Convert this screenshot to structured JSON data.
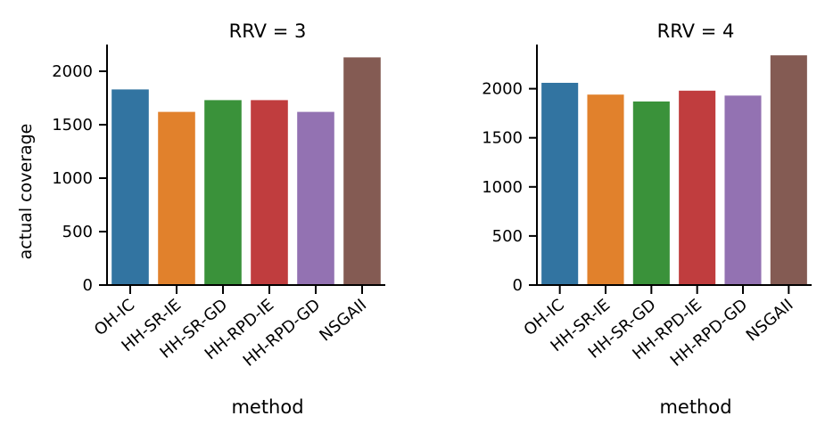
{
  "chart_data": [
    {
      "type": "bar",
      "title": "RRV = 3",
      "xlabel": "method",
      "ylabel": "actual coverage",
      "categories": [
        "OH-IC",
        "HH-SR-IE",
        "HH-SR-GD",
        "HH-RPD-IE",
        "HH-RPD-GD",
        "NSGAII"
      ],
      "values": [
        1830,
        1620,
        1730,
        1730,
        1620,
        2130
      ],
      "colors": [
        "#3274a1",
        "#e1812c",
        "#3a923a",
        "#c03d3e",
        "#9372b2",
        "#845b53"
      ],
      "ylim": [
        0,
        2250
      ],
      "yticks": [
        0,
        500,
        1000,
        1500,
        2000
      ],
      "grid": false,
      "legend": "none"
    },
    {
      "type": "bar",
      "title": "RRV = 4",
      "xlabel": "method",
      "ylabel": "",
      "categories": [
        "OH-IC",
        "HH-SR-IE",
        "HH-SR-GD",
        "HH-RPD-IE",
        "HH-RPD-GD",
        "NSGAII"
      ],
      "values": [
        2060,
        1940,
        1870,
        1980,
        1930,
        2340
      ],
      "colors": [
        "#3274a1",
        "#e1812c",
        "#3a923a",
        "#c03d3e",
        "#9372b2",
        "#845b53"
      ],
      "ylim": [
        0,
        2450
      ],
      "yticks": [
        0,
        500,
        1000,
        1500,
        2000
      ],
      "grid": false,
      "legend": "none"
    }
  ]
}
